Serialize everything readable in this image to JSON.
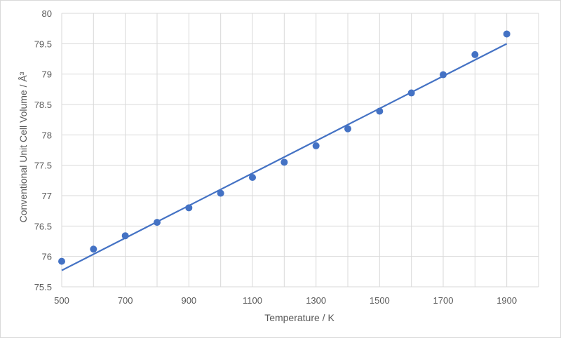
{
  "chart_data": {
    "type": "scatter",
    "xlabel": "Temperature / K",
    "ylabel": "Conventional Unit Cell Volume / Å³",
    "xlim": [
      500,
      2000
    ],
    "ylim": [
      75.5,
      80
    ],
    "x_ticks": [
      500,
      700,
      900,
      1100,
      1300,
      1500,
      1700,
      1900
    ],
    "y_ticks": [
      "75.5",
      "76",
      "76.5",
      "77",
      "77.5",
      "78",
      "78.5",
      "79",
      "79.5",
      "80"
    ],
    "grid": true,
    "legend": "none",
    "series": [
      {
        "marker_color": "#4472c4",
        "x": [
          500,
          600,
          700,
          800,
          900,
          1000,
          1100,
          1200,
          1300,
          1400,
          1500,
          1600,
          1700,
          1800,
          1900
        ],
        "y": [
          75.92,
          76.12,
          76.34,
          76.56,
          76.8,
          77.04,
          77.3,
          77.55,
          77.82,
          78.1,
          78.39,
          78.69,
          78.99,
          79.32,
          79.66
        ]
      }
    ],
    "trendline": {
      "type": "linear",
      "color": "#4472c4",
      "x": [
        500,
        1900
      ],
      "y": [
        75.77,
        79.5
      ]
    }
  }
}
